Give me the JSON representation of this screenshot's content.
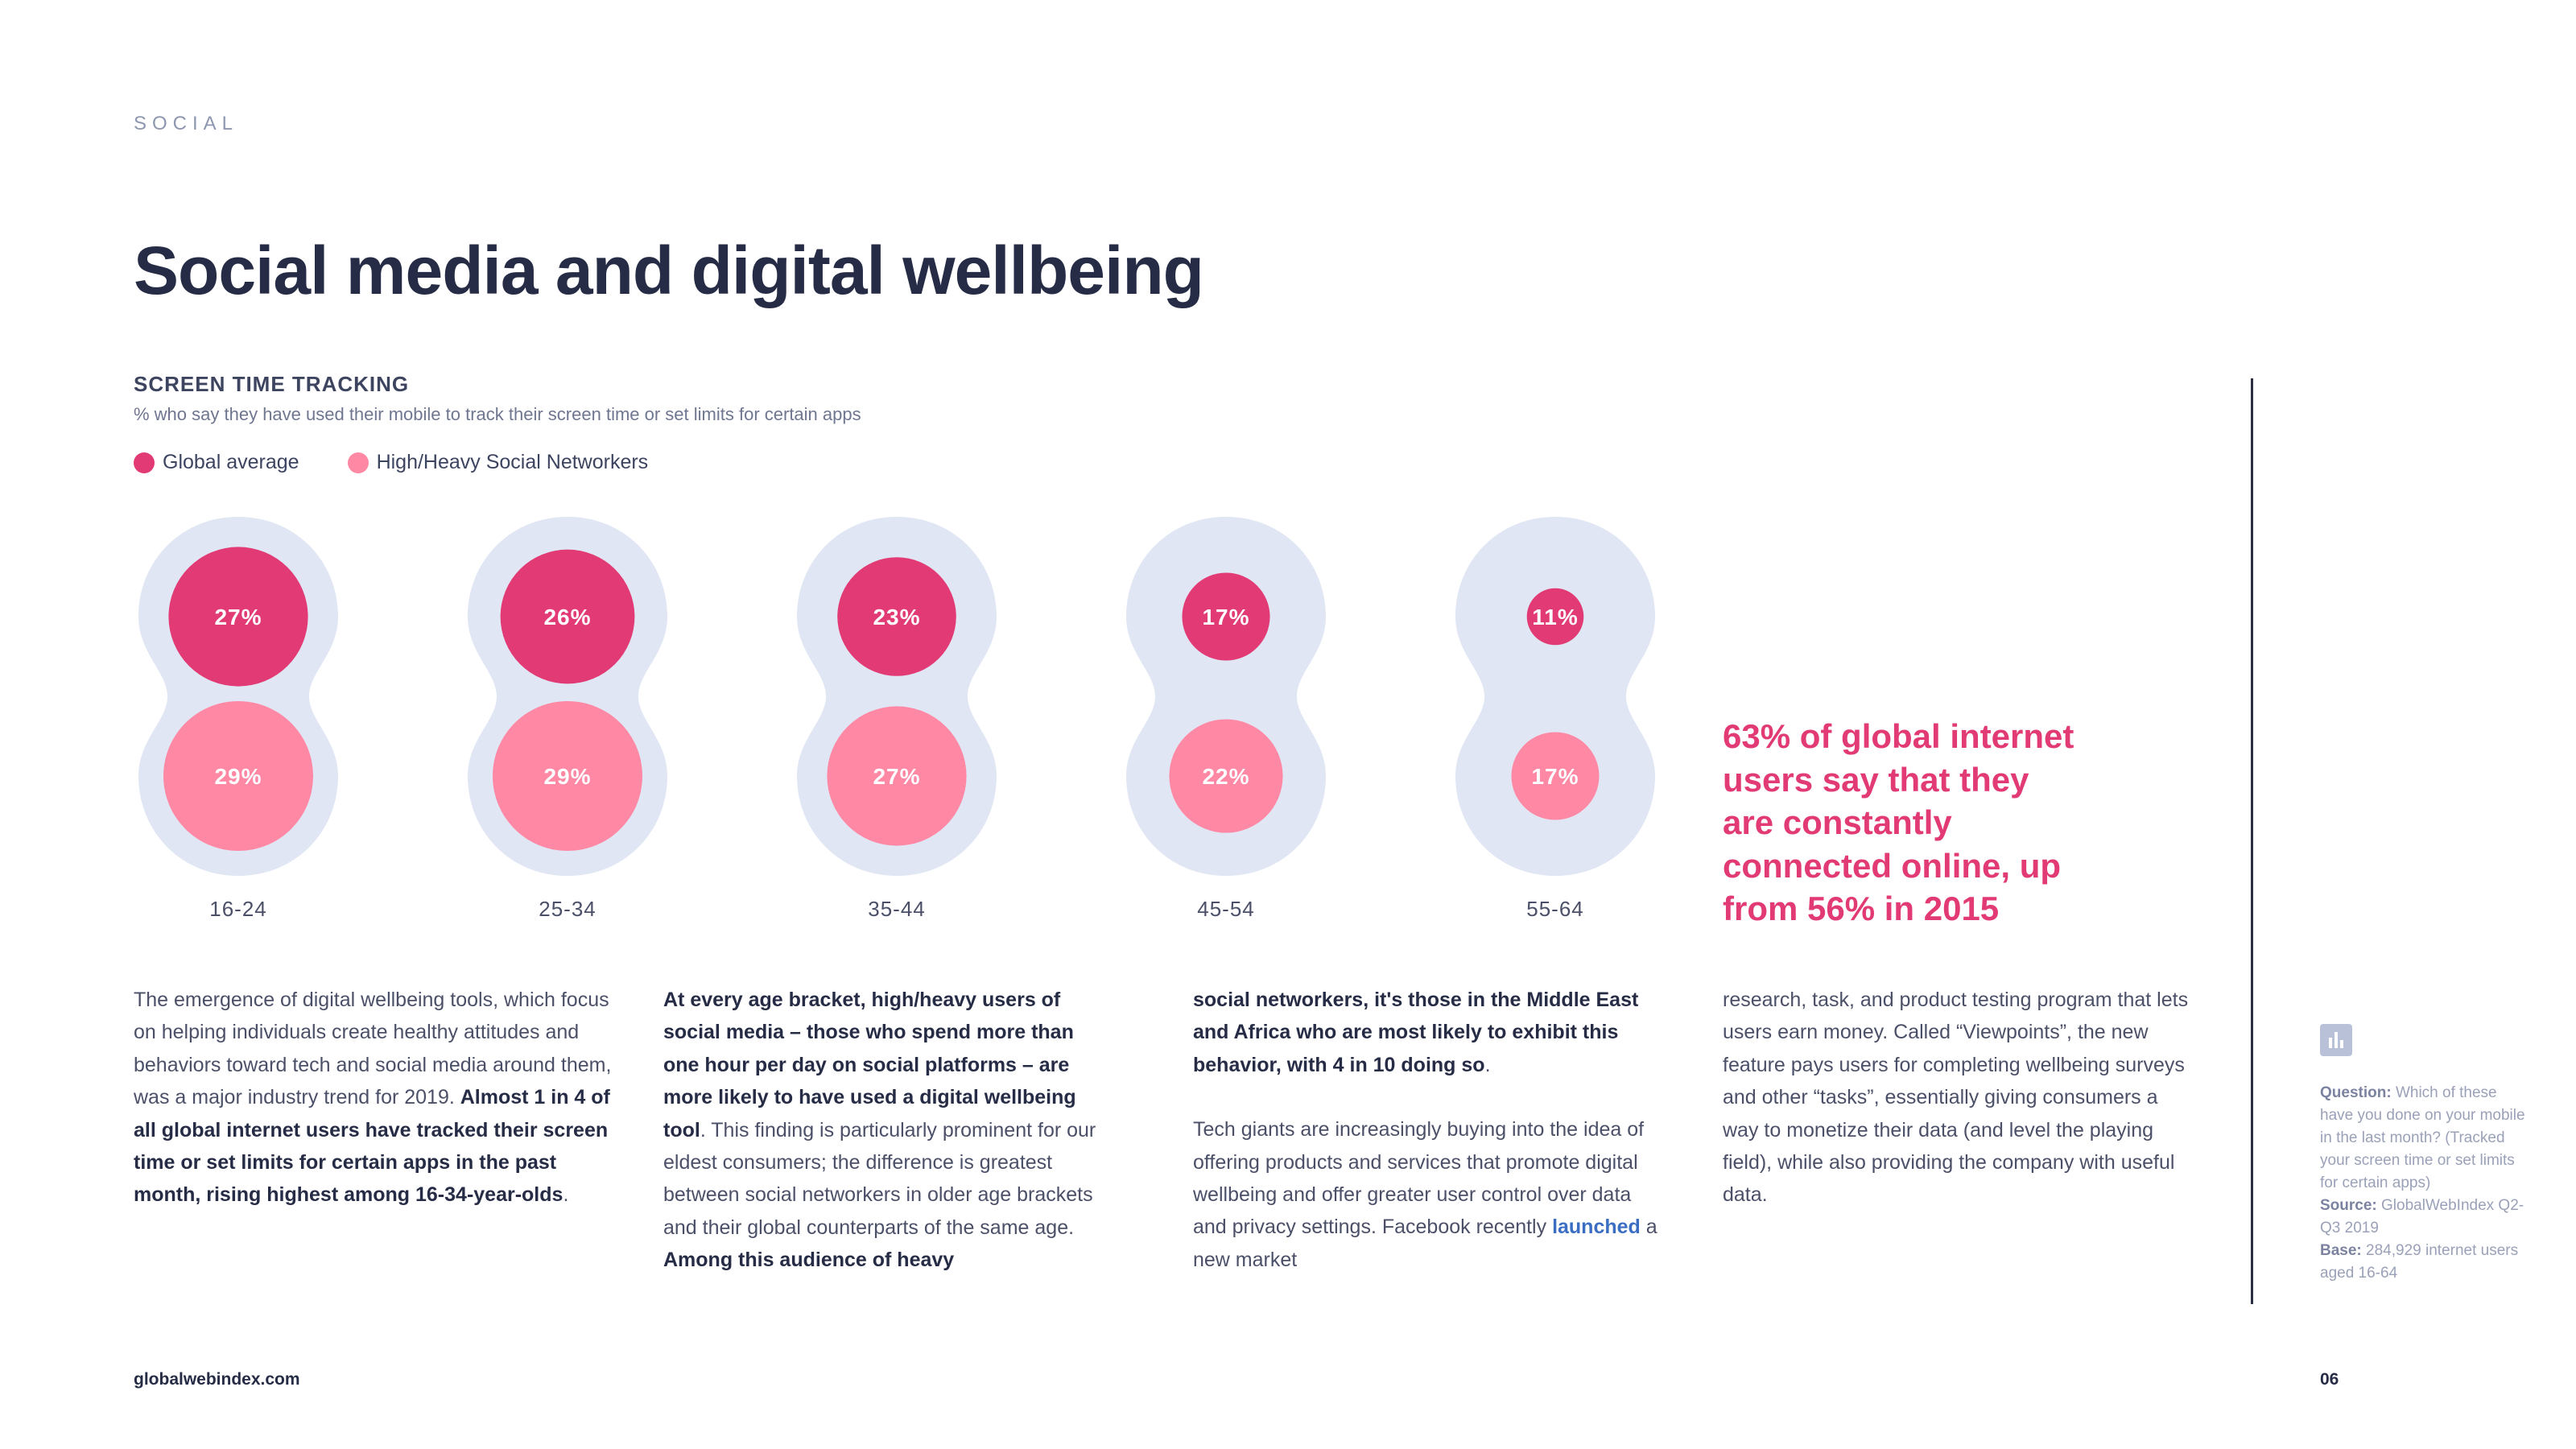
{
  "section_label": "SOCIAL",
  "title": "Social media and digital wellbeing",
  "colors": {
    "global": "#e23a74",
    "heavy": "#ff88a5",
    "capsule": "#e0e6f3",
    "text_dark": "#262c45",
    "accent": "#e23a74"
  },
  "chart_data": {
    "type": "bubble",
    "title": "SCREEN TIME TRACKING",
    "subtitle": "% who say they have used their mobile to track their screen time or set limits for certain apps",
    "legend": [
      "Global average",
      "High/Heavy Social Networkers"
    ],
    "categories": [
      "16-24",
      "25-34",
      "35-44",
      "45-54",
      "55-64"
    ],
    "series": [
      {
        "name": "Global average",
        "values": [
          27,
          26,
          23,
          17,
          11
        ]
      },
      {
        "name": "High/Heavy Social Networkers",
        "values": [
          29,
          29,
          27,
          22,
          17
        ]
      }
    ]
  },
  "columns": {
    "c1": {
      "t1": "The emergence of digital wellbeing tools, which focus on helping individuals create healthy attitudes and behaviors toward tech and social media around them, was a major industry trend for 2019. ",
      "b1": "Almost 1 in 4 of all global internet users have tracked their screen time or set limits for certain apps in the past month, rising highest among 16-34-year-olds",
      "t2": "."
    },
    "c2": {
      "b1": "At every age bracket, high/heavy users of social media – those who spend more than one hour per day on social platforms – are more likely to have used a digital wellbeing tool",
      "t1": ". This finding is particularly prominent for our eldest consumers; the difference is greatest between social networkers in older age brackets and their global counterparts of the same age. ",
      "b2": "Among this audience of heavy"
    },
    "c3": {
      "b1": "social networkers, it's those in the Middle East and Africa who are most likely to exhibit this behavior, with 4 in 10 doing so",
      "t1": ".",
      "t2": "Tech giants are increasingly buying into the idea of offering products and services that promote digital wellbeing and offer greater user control over data and privacy settings. Facebook recently ",
      "link": "launched",
      "t3": " a new market"
    },
    "c4": {
      "t1": "research, task, and product testing program that lets users earn money. Called “Viewpoints”, the new feature pays users for completing wellbeing surveys and other “tasks”, essentially giving consumers a way to monetize their data (and level the playing field), while also providing the company with useful data."
    }
  },
  "callout": "63% of global internet users say that they are constantly connected online, up from 56% in 2015",
  "side_note": {
    "question_label": "Question:",
    "question": " Which of these have you done on your mobile in the last month? (Tracked your screen time or set limits for certain apps)",
    "source_label": "Source:",
    "source": " GlobalWebIndex Q2-Q3 2019",
    "base_label": "Base:",
    "base": " 284,929 internet users aged 16-64"
  },
  "footer": {
    "url": "globalwebindex.com",
    "page": "06"
  }
}
